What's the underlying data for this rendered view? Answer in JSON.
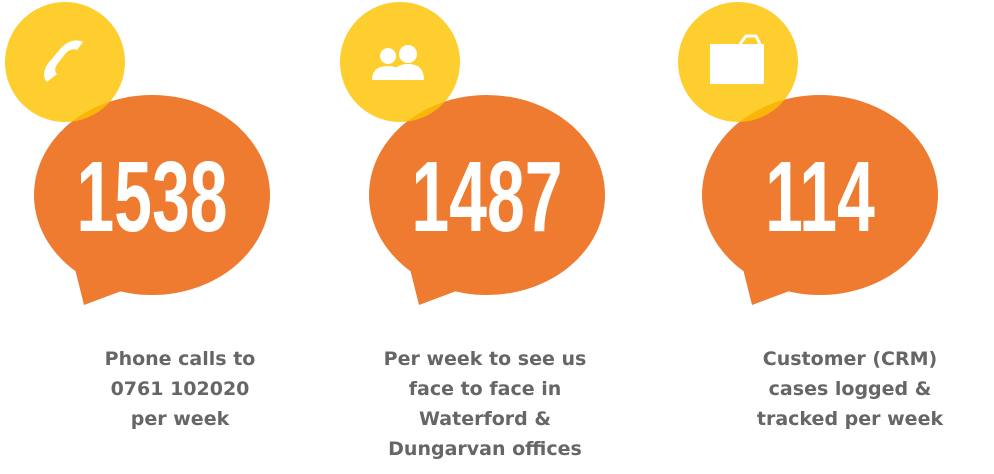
{
  "items": [
    {
      "number": 1538,
      "caption": [
        "Phone calls to",
        "0761 102020",
        "per week"
      ]
    },
    {
      "number": 1487,
      "caption": [
        "Per week to see us",
        "face to face in",
        "Waterford &",
        "Dungarvan offices"
      ]
    },
    {
      "number": 114,
      "caption": [
        "Customer (CRM)",
        "cases logged &",
        "tracked per week"
      ]
    }
  ]
}
